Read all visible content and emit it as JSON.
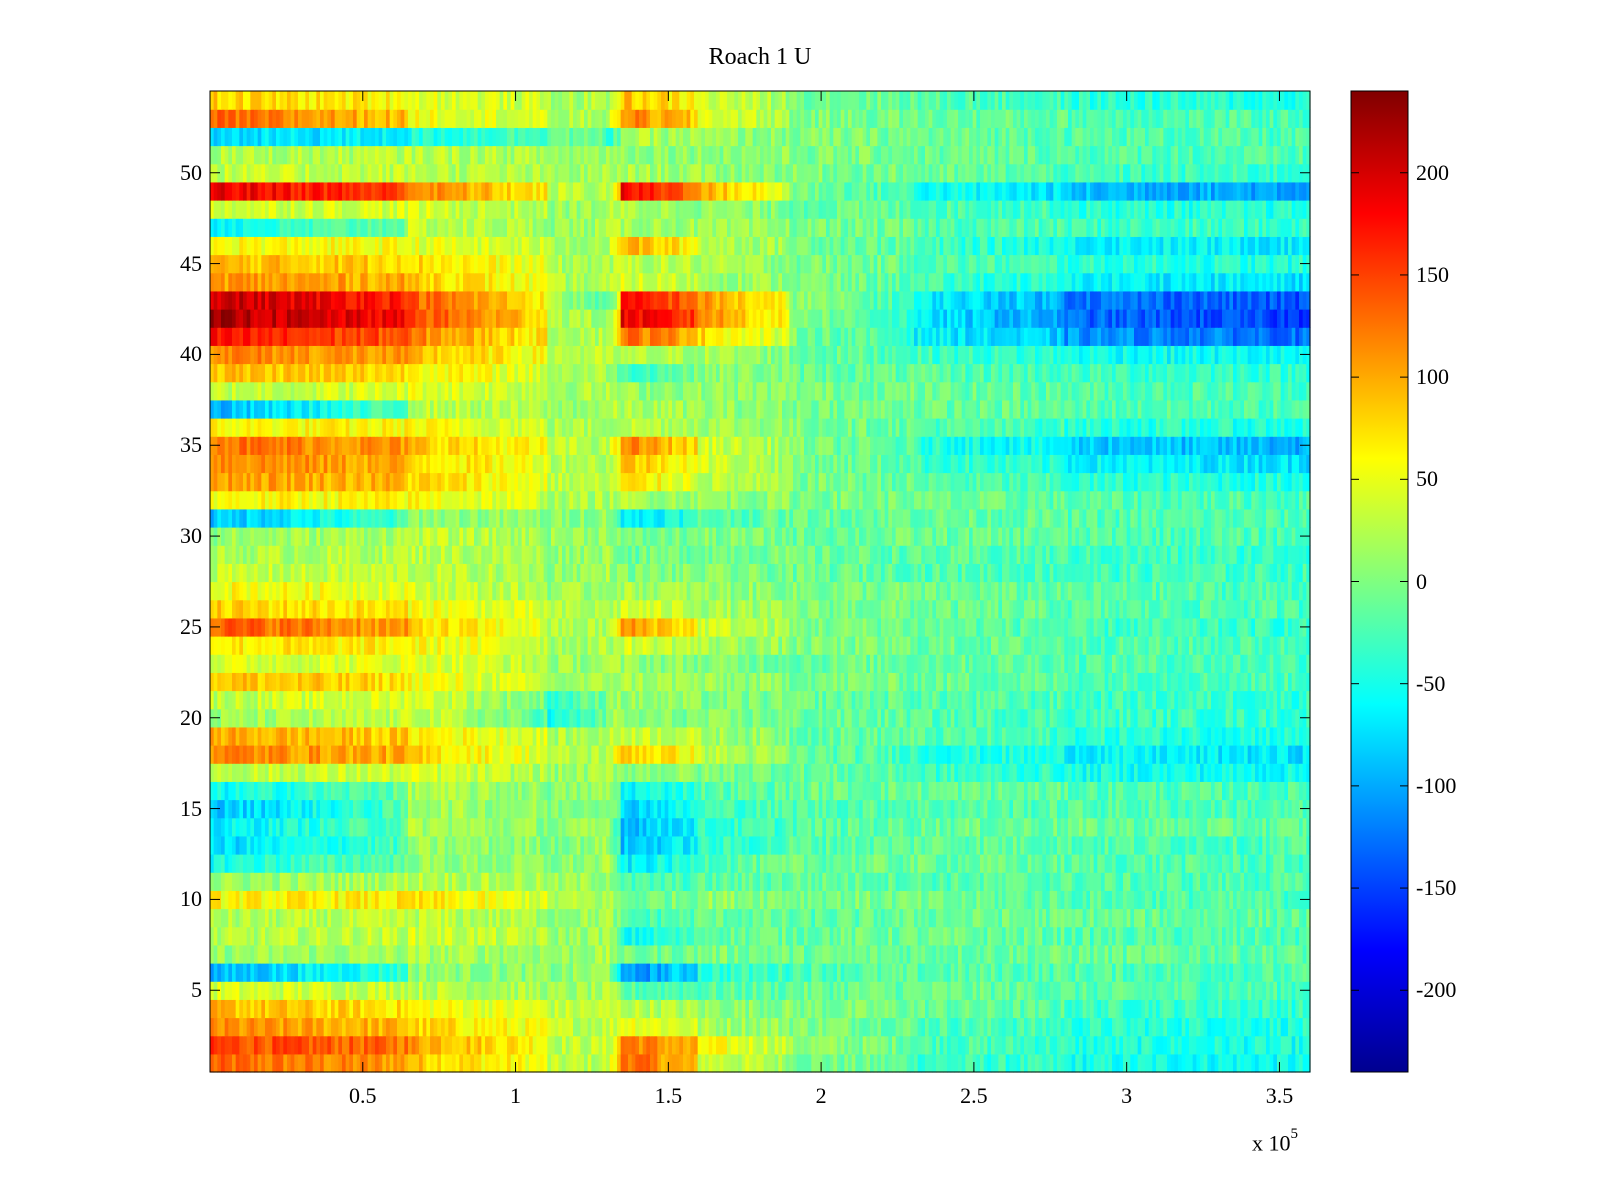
{
  "chart_data": {
    "type": "heatmap",
    "title": "Roach 1 U",
    "xlabel": "",
    "ylabel": "",
    "x_range": [
      0,
      360000
    ],
    "y_range": [
      0.5,
      54.5
    ],
    "x_multiplier_label": "x 10",
    "x_multiplier_exponent": "5",
    "x_ticks": [
      50000,
      100000,
      150000,
      200000,
      250000,
      300000,
      350000
    ],
    "x_tick_labels": [
      "0.5",
      "1",
      "1.5",
      "2",
      "2.5",
      "3",
      "3.5"
    ],
    "y_ticks": [
      5,
      10,
      15,
      20,
      25,
      30,
      35,
      40,
      45,
      50
    ],
    "y_tick_labels": [
      "5",
      "10",
      "15",
      "20",
      "25",
      "30",
      "35",
      "40",
      "45",
      "50"
    ],
    "rows": 54,
    "colorbar": {
      "colormap": "jet",
      "range": [
        -240,
        240
      ],
      "ticks": [
        -200,
        -150,
        -100,
        -50,
        0,
        50,
        100,
        150,
        200
      ],
      "tick_labels": [
        "-200",
        "-150",
        "-100",
        "-50",
        "0",
        "50",
        "100",
        "150",
        "200"
      ]
    },
    "time_segments_x": [
      0,
      65000,
      110000,
      130000,
      135000,
      160000,
      190000,
      230000,
      280000,
      360000
    ],
    "row_profiles": [
      {
        "row": 1,
        "values": [
          130,
          90,
          25,
          30,
          140,
          40,
          0,
          -30,
          -50,
          -60
        ]
      },
      {
        "row": 2,
        "values": [
          150,
          110,
          30,
          30,
          130,
          60,
          10,
          -20,
          -45,
          -55
        ]
      },
      {
        "row": 3,
        "values": [
          110,
          80,
          30,
          30,
          60,
          20,
          5,
          -20,
          -40,
          -50
        ]
      },
      {
        "row": 4,
        "values": [
          90,
          60,
          30,
          30,
          30,
          10,
          0,
          -10,
          -30,
          -40
        ]
      },
      {
        "row": 5,
        "values": [
          40,
          30,
          10,
          20,
          -20,
          -20,
          -10,
          -10,
          -20,
          -30
        ]
      },
      {
        "row": 6,
        "values": [
          -100,
          10,
          0,
          20,
          -120,
          -40,
          -20,
          -20,
          -20,
          -30
        ]
      },
      {
        "row": 7,
        "values": [
          10,
          20,
          10,
          20,
          -10,
          0,
          -10,
          -10,
          -10,
          -20
        ]
      },
      {
        "row": 8,
        "values": [
          20,
          40,
          10,
          20,
          -60,
          -10,
          -10,
          -10,
          -20,
          -30
        ]
      },
      {
        "row": 9,
        "values": [
          20,
          30,
          10,
          20,
          -30,
          -10,
          -20,
          -10,
          -10,
          -20
        ]
      },
      {
        "row": 10,
        "values": [
          60,
          70,
          20,
          20,
          -10,
          10,
          0,
          -10,
          -20,
          -30
        ]
      },
      {
        "row": 11,
        "values": [
          10,
          30,
          10,
          20,
          -30,
          -20,
          -10,
          -20,
          -20,
          -30
        ]
      },
      {
        "row": 12,
        "values": [
          -50,
          10,
          0,
          20,
          -70,
          -20,
          -10,
          -10,
          -20,
          -30
        ]
      },
      {
        "row": 13,
        "values": [
          -80,
          10,
          0,
          20,
          -90,
          -40,
          -20,
          -10,
          -20,
          -30
        ]
      },
      {
        "row": 14,
        "values": [
          -70,
          20,
          0,
          20,
          -90,
          -40,
          -20,
          -10,
          -10,
          -20
        ]
      },
      {
        "row": 15,
        "values": [
          -90,
          20,
          0,
          20,
          -80,
          -30,
          -20,
          -20,
          -20,
          -30
        ]
      },
      {
        "row": 16,
        "values": [
          -60,
          20,
          0,
          20,
          -60,
          -20,
          -10,
          -10,
          -20,
          -30
        ]
      },
      {
        "row": 17,
        "values": [
          30,
          40,
          10,
          20,
          10,
          0,
          -10,
          -30,
          -50,
          -60
        ]
      },
      {
        "row": 18,
        "values": [
          120,
          80,
          20,
          30,
          90,
          30,
          -10,
          -40,
          -60,
          -80
        ]
      },
      {
        "row": 19,
        "values": [
          100,
          70,
          20,
          20,
          40,
          20,
          -10,
          -20,
          -40,
          -50
        ]
      },
      {
        "row": 20,
        "values": [
          10,
          40,
          -60,
          20,
          0,
          0,
          -10,
          -20,
          -30,
          -40
        ]
      },
      {
        "row": 21,
        "values": [
          30,
          50,
          -40,
          20,
          10,
          0,
          -10,
          -20,
          -30,
          -40
        ]
      },
      {
        "row": 22,
        "values": [
          90,
          60,
          10,
          20,
          20,
          10,
          0,
          -10,
          -20,
          -30
        ]
      },
      {
        "row": 23,
        "values": [
          40,
          50,
          10,
          20,
          10,
          0,
          -10,
          -10,
          -20,
          -30
        ]
      },
      {
        "row": 24,
        "values": [
          70,
          60,
          20,
          20,
          40,
          20,
          0,
          -10,
          -20,
          -30
        ]
      },
      {
        "row": 25,
        "values": [
          140,
          80,
          20,
          20,
          110,
          40,
          0,
          -10,
          -30,
          -40
        ]
      },
      {
        "row": 26,
        "values": [
          80,
          60,
          20,
          20,
          40,
          20,
          0,
          -10,
          -20,
          -30
        ]
      },
      {
        "row": 27,
        "values": [
          60,
          40,
          10,
          20,
          20,
          10,
          0,
          -10,
          -20,
          -30
        ]
      },
      {
        "row": 28,
        "values": [
          30,
          30,
          10,
          20,
          0,
          0,
          -10,
          -20,
          -30,
          -30
        ]
      },
      {
        "row": 29,
        "values": [
          20,
          30,
          10,
          20,
          -10,
          0,
          -10,
          -20,
          -30,
          -40
        ]
      },
      {
        "row": 30,
        "values": [
          10,
          30,
          10,
          20,
          -10,
          0,
          -10,
          -10,
          -20,
          -30
        ]
      },
      {
        "row": 31,
        "values": [
          -90,
          10,
          0,
          20,
          -70,
          -20,
          -10,
          -10,
          -20,
          -30
        ]
      },
      {
        "row": 32,
        "values": [
          60,
          60,
          20,
          20,
          20,
          10,
          0,
          -10,
          -20,
          -30
        ]
      },
      {
        "row": 33,
        "values": [
          110,
          80,
          30,
          20,
          70,
          30,
          0,
          -20,
          -40,
          -50
        ]
      },
      {
        "row": 34,
        "values": [
          120,
          80,
          30,
          20,
          90,
          40,
          0,
          -30,
          -60,
          -80
        ]
      },
      {
        "row": 35,
        "values": [
          130,
          90,
          30,
          20,
          120,
          40,
          0,
          -40,
          -80,
          -110
        ]
      },
      {
        "row": 36,
        "values": [
          60,
          60,
          20,
          20,
          30,
          20,
          0,
          -20,
          -40,
          -50
        ]
      },
      {
        "row": 37,
        "values": [
          -100,
          30,
          10,
          20,
          20,
          10,
          0,
          -10,
          -20,
          -30
        ]
      },
      {
        "row": 38,
        "values": [
          30,
          50,
          20,
          20,
          10,
          10,
          0,
          -10,
          -20,
          -30
        ]
      },
      {
        "row": 39,
        "values": [
          90,
          70,
          20,
          20,
          -30,
          10,
          -10,
          -20,
          -30,
          -40
        ]
      },
      {
        "row": 40,
        "values": [
          120,
          90,
          30,
          20,
          20,
          20,
          -10,
          -30,
          -50,
          -70
        ]
      },
      {
        "row": 41,
        "values": [
          170,
          120,
          30,
          20,
          130,
          80,
          0,
          -60,
          -110,
          -140
        ]
      },
      {
        "row": 42,
        "values": [
          220,
          150,
          30,
          0,
          190,
          120,
          10,
          -70,
          -130,
          -170
        ]
      },
      {
        "row": 43,
        "values": [
          210,
          140,
          20,
          -40,
          170,
          110,
          10,
          -60,
          -120,
          -160
        ]
      },
      {
        "row": 44,
        "values": [
          110,
          90,
          20,
          20,
          40,
          20,
          0,
          -30,
          -60,
          -80
        ]
      },
      {
        "row": 45,
        "values": [
          90,
          80,
          20,
          20,
          30,
          20,
          0,
          -20,
          -40,
          -50
        ]
      },
      {
        "row": 46,
        "values": [
          60,
          50,
          20,
          20,
          100,
          30,
          0,
          -30,
          -60,
          -70
        ]
      },
      {
        "row": 47,
        "values": [
          -60,
          30,
          10,
          20,
          20,
          10,
          0,
          -20,
          -30,
          -40
        ]
      },
      {
        "row": 48,
        "values": [
          40,
          40,
          10,
          20,
          20,
          10,
          -10,
          -20,
          -40,
          -50
        ]
      },
      {
        "row": 49,
        "values": [
          190,
          120,
          30,
          20,
          180,
          100,
          0,
          -50,
          -90,
          -110
        ]
      },
      {
        "row": 50,
        "values": [
          30,
          30,
          10,
          20,
          20,
          10,
          0,
          -10,
          -30,
          -40
        ]
      },
      {
        "row": 51,
        "values": [
          20,
          30,
          10,
          20,
          10,
          10,
          0,
          -10,
          -20,
          -30
        ]
      },
      {
        "row": 52,
        "values": [
          -80,
          -50,
          0,
          -40,
          20,
          10,
          0,
          -10,
          -20,
          -30
        ]
      },
      {
        "row": 53,
        "values": [
          130,
          60,
          20,
          20,
          120,
          50,
          0,
          -10,
          -20,
          -30
        ]
      },
      {
        "row": 54,
        "values": [
          80,
          50,
          20,
          20,
          90,
          40,
          0,
          -20,
          -40,
          -50
        ]
      }
    ]
  }
}
